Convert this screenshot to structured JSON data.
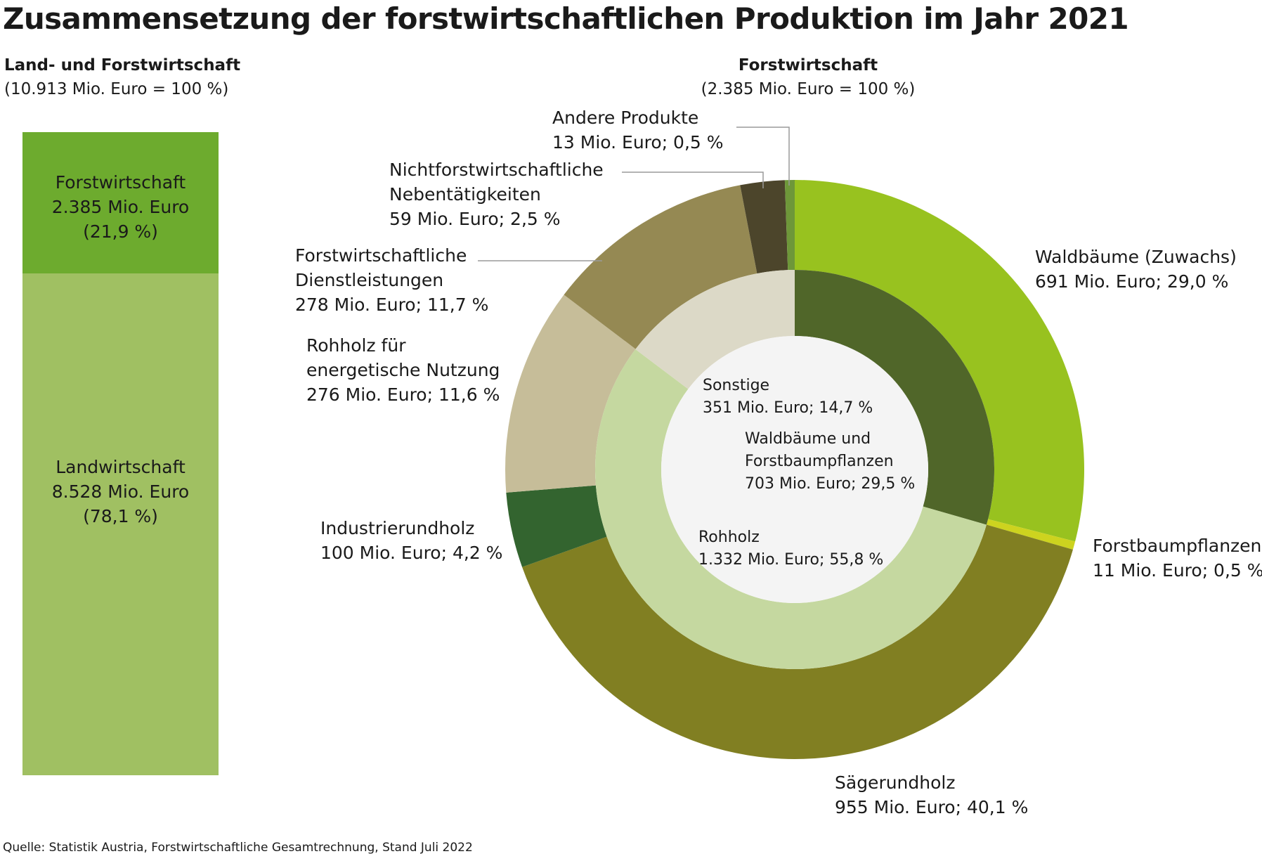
{
  "title": "Zusammensetzung der forstwirtschaftlichen Produktion im Jahr 2021",
  "left_header": {
    "title": "Land- und Forstwirtschaft",
    "subtitle": "(10.913 Mio. Euro = 100 %)"
  },
  "right_header": {
    "title": "Forstwirtschaft",
    "subtitle": "(2.385 Mio. Euro = 100 %)"
  },
  "source": "Quelle: Statistik Austria, Forstwirtschaftliche Gesamtrechnung, Stand Juli 2022",
  "chart_data": [
    {
      "type": "bar",
      "stacked": true,
      "total_label": "(10.913 Mio. Euro = 100 %)",
      "segments": [
        {
          "name": "Forstwirtschaft",
          "value": 2385,
          "value_label": "2.385 Mio. Euro",
          "share_label": "(21,9 %)",
          "percent": 21.9,
          "color": "#6dab2e"
        },
        {
          "name": "Landwirtschaft",
          "value": 8528,
          "value_label": "8.528 Mio. Euro",
          "share_label": "(78,1 %)",
          "percent": 78.1,
          "color": "#a0c062"
        }
      ]
    },
    {
      "type": "pie",
      "variant": "nested-donut",
      "total_label": "(2.385 Mio. Euro = 100 %)",
      "outer": [
        {
          "name": "Waldbäume (Zuwachs)",
          "detail": "691 Mio. Euro; 29,0 %",
          "value": 691,
          "percent": 29.0,
          "color": "#98c21f"
        },
        {
          "name": "Forstbaumpflanzen",
          "detail": "11 Mio. Euro; 0,5 %",
          "value": 11,
          "percent": 0.5,
          "color": "#cdd31f"
        },
        {
          "name": "Sägerundholz",
          "detail": "955 Mio. Euro; 40,1 %",
          "value": 955,
          "percent": 40.1,
          "color": "#817f22"
        },
        {
          "name": "Industrierundholz",
          "detail": "100 Mio. Euro; 4,2 %",
          "value": 100,
          "percent": 4.2,
          "color": "#33642f"
        },
        {
          "name": "Rohholz für\nenergetische Nutzung",
          "detail": "276 Mio. Euro; 11,6 %",
          "value": 276,
          "percent": 11.6,
          "color": "#c6bd99"
        },
        {
          "name": "Forstwirtschaftliche\nDienstleistungen",
          "detail": "278 Mio. Euro; 11,7 %",
          "value": 278,
          "percent": 11.7,
          "color": "#958953"
        },
        {
          "name": "Nichtforstwirtschaftliche\nNebentätigkeiten",
          "detail": "59 Mio. Euro; 2,5 %",
          "value": 59,
          "percent": 2.5,
          "color": "#4c452b"
        },
        {
          "name": "Andere Produkte",
          "detail": "13 Mio. Euro; 0,5 %",
          "value": 13,
          "percent": 0.5,
          "color": "#6e9739"
        }
      ],
      "inner": [
        {
          "name": "Waldbäume und\nForstbaumpflanzen",
          "detail": "703 Mio. Euro; 29,5 %",
          "value": 703,
          "percent": 29.5,
          "color": "#506629"
        },
        {
          "name": "Rohholz",
          "detail": "1.332 Mio. Euro; 55,8 %",
          "value": 1332,
          "percent": 55.8,
          "color": "#c5d8a0"
        },
        {
          "name": "Sonstige",
          "detail": "351 Mio. Euro; 14,7 %",
          "value": 351,
          "percent": 14.7,
          "color": "#dcd9c7"
        }
      ]
    }
  ]
}
